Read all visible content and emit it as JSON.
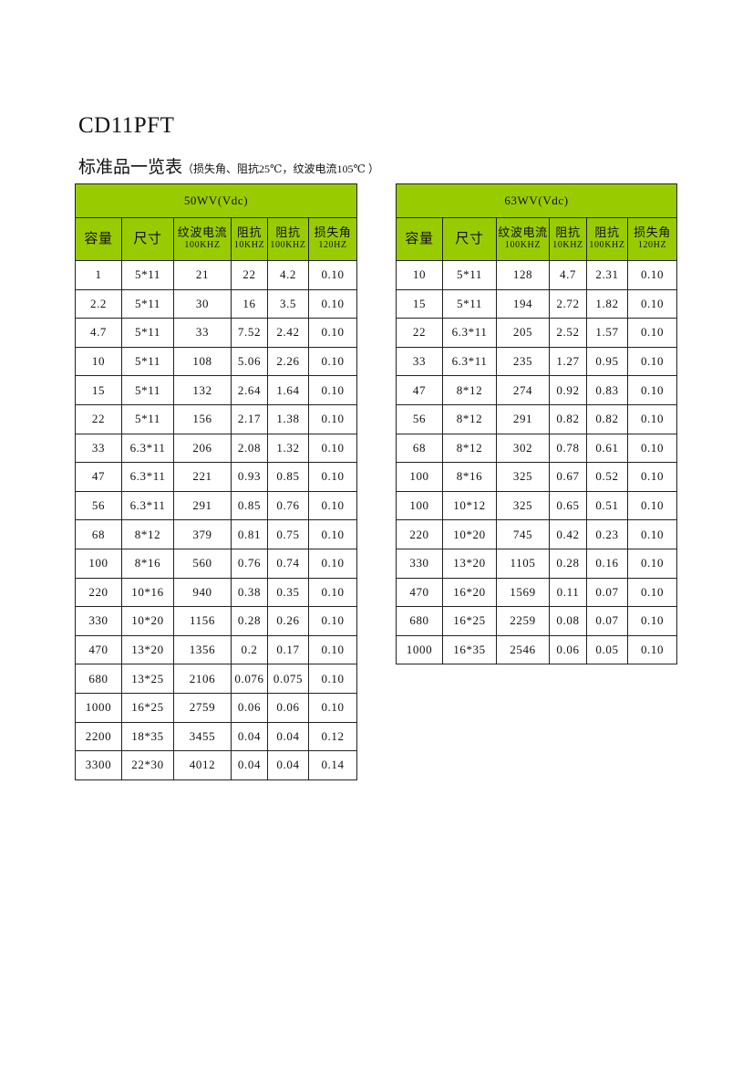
{
  "title": "CD11PFT",
  "subtitle": "标准品一览表",
  "subtitle_note": "（损失角、阻抗25℃，纹波电流105℃ ）",
  "accent_color": "#99cc00",
  "columns": [
    {
      "label": "容量",
      "sub": ""
    },
    {
      "label": "尺寸",
      "sub": ""
    },
    {
      "label": "纹波电流",
      "sub": "100KHZ"
    },
    {
      "label": "阻抗",
      "sub": "10KHZ"
    },
    {
      "label": "阻抗",
      "sub": "100KHZ"
    },
    {
      "label": "损失角",
      "sub": "120HZ"
    }
  ],
  "tables": [
    {
      "voltage": "50WV(Vdc)",
      "rows": [
        [
          "1",
          "5*11",
          "21",
          "22",
          "4.2",
          "0.10"
        ],
        [
          "2.2",
          "5*11",
          "30",
          "16",
          "3.5",
          "0.10"
        ],
        [
          "4.7",
          "5*11",
          "33",
          "7.52",
          "2.42",
          "0.10"
        ],
        [
          "10",
          "5*11",
          "108",
          "5.06",
          "2.26",
          "0.10"
        ],
        [
          "15",
          "5*11",
          "132",
          "2.64",
          "1.64",
          "0.10"
        ],
        [
          "22",
          "5*11",
          "156",
          "2.17",
          "1.38",
          "0.10"
        ],
        [
          "33",
          "6.3*11",
          "206",
          "2.08",
          "1.32",
          "0.10"
        ],
        [
          "47",
          "6.3*11",
          "221",
          "0.93",
          "0.85",
          "0.10"
        ],
        [
          "56",
          "6.3*11",
          "291",
          "0.85",
          "0.76",
          "0.10"
        ],
        [
          "68",
          "8*12",
          "379",
          "0.81",
          "0.75",
          "0.10"
        ],
        [
          "100",
          "8*16",
          "560",
          "0.76",
          "0.74",
          "0.10"
        ],
        [
          "220",
          "10*16",
          "940",
          "0.38",
          "0.35",
          "0.10"
        ],
        [
          "330",
          "10*20",
          "1156",
          "0.28",
          "0.26",
          "0.10"
        ],
        [
          "470",
          "13*20",
          "1356",
          "0.2",
          "0.17",
          "0.10"
        ],
        [
          "680",
          "13*25",
          "2106",
          "0.076",
          "0.075",
          "0.10"
        ],
        [
          "1000",
          "16*25",
          "2759",
          "0.06",
          "0.06",
          "0.10"
        ],
        [
          "2200",
          "18*35",
          "3455",
          "0.04",
          "0.04",
          "0.12"
        ],
        [
          "3300",
          "22*30",
          "4012",
          "0.04",
          "0.04",
          "0.14"
        ]
      ]
    },
    {
      "voltage": "63WV(Vdc)",
      "rows": [
        [
          "10",
          "5*11",
          "128",
          "4.7",
          "2.31",
          "0.10"
        ],
        [
          "15",
          "5*11",
          "194",
          "2.72",
          "1.82",
          "0.10"
        ],
        [
          "22",
          "6.3*11",
          "205",
          "2.52",
          "1.57",
          "0.10"
        ],
        [
          "33",
          "6.3*11",
          "235",
          "1.27",
          "0.95",
          "0.10"
        ],
        [
          "47",
          "8*12",
          "274",
          "0.92",
          "0.83",
          "0.10"
        ],
        [
          "56",
          "8*12",
          "291",
          "0.82",
          "0.82",
          "0.10"
        ],
        [
          "68",
          "8*12",
          "302",
          "0.78",
          "0.61",
          "0.10"
        ],
        [
          "100",
          "8*16",
          "325",
          "0.67",
          "0.52",
          "0.10"
        ],
        [
          "100",
          "10*12",
          "325",
          "0.65",
          "0.51",
          "0.10"
        ],
        [
          "220",
          "10*20",
          "745",
          "0.42",
          "0.23",
          "0.10"
        ],
        [
          "330",
          "13*20",
          "1105",
          "0.28",
          "0.16",
          "0.10"
        ],
        [
          "470",
          "16*20",
          "1569",
          "0.11",
          "0.07",
          "0.10"
        ],
        [
          "680",
          "16*25",
          "2259",
          "0.08",
          "0.07",
          "0.10"
        ],
        [
          "1000",
          "16*35",
          "2546",
          "0.06",
          "0.05",
          "0.10"
        ]
      ]
    }
  ]
}
